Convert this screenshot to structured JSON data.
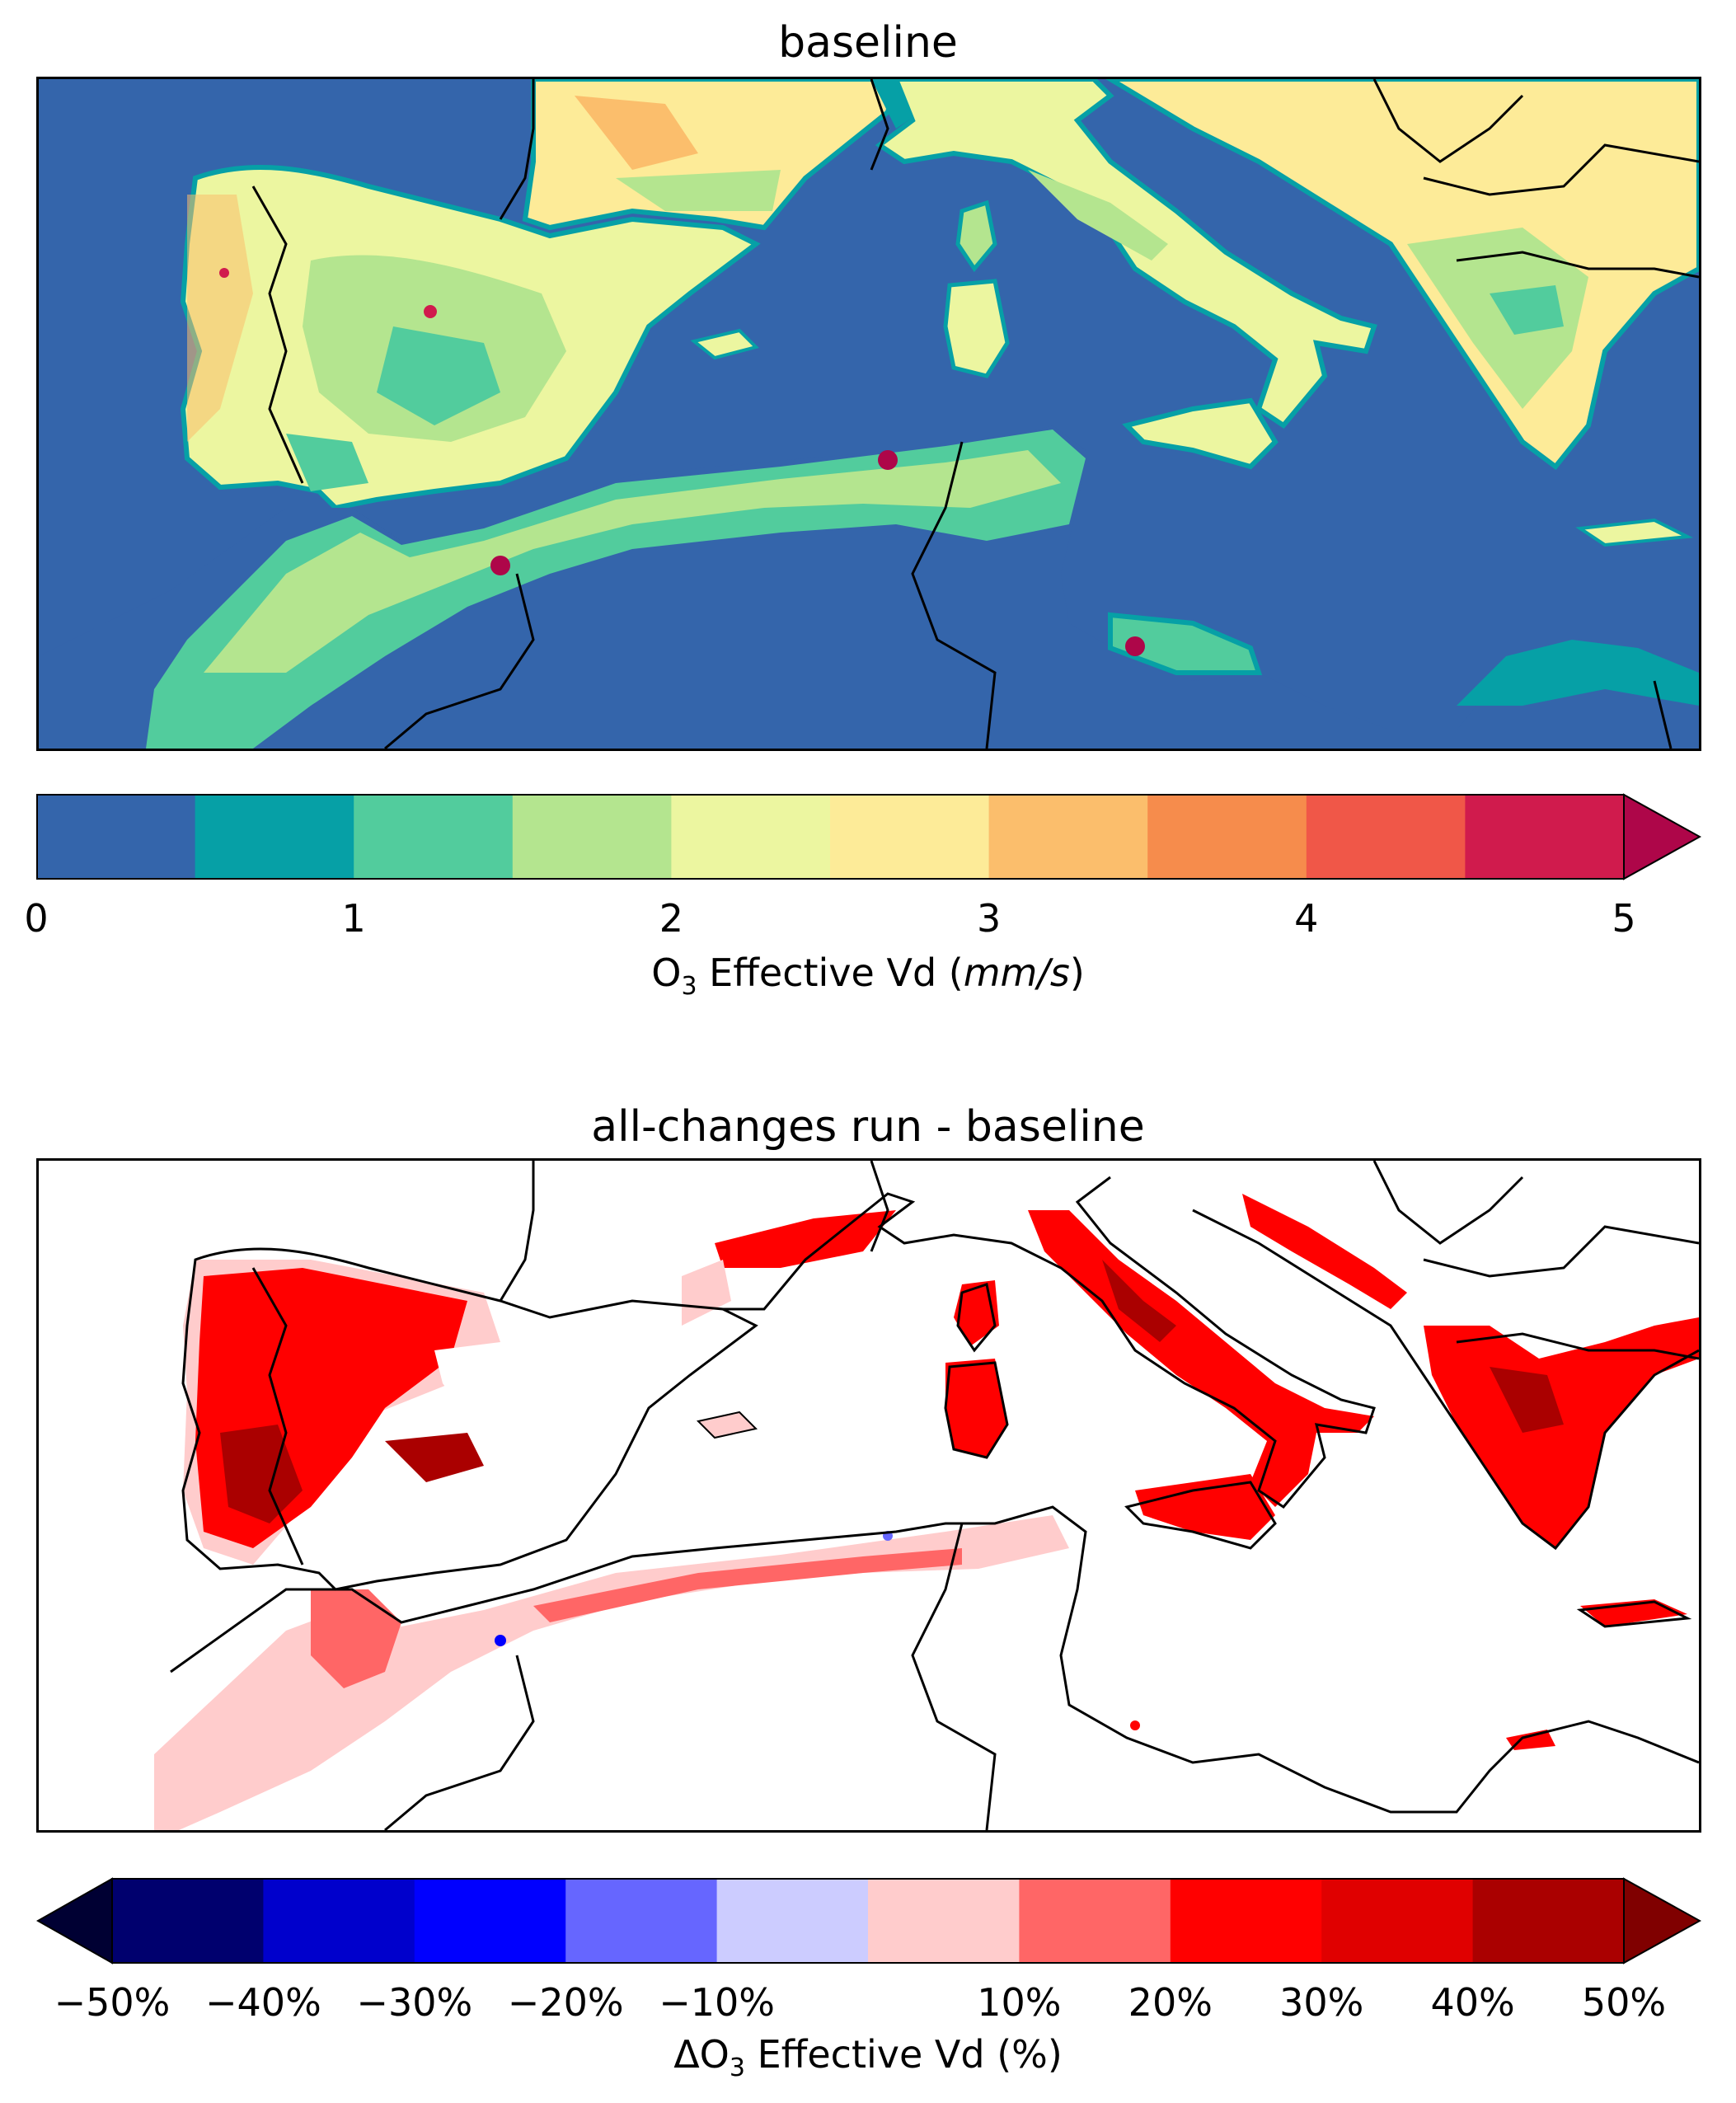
{
  "panel1": {
    "title": "baseline",
    "colorbar": {
      "ticks": [
        "0",
        "1",
        "2",
        "3",
        "4",
        "5"
      ],
      "label_prefix": "O",
      "label_sub": "3",
      "label_mid": " Effective Vd (",
      "label_unit": "mm/s",
      "label_suffix": ")",
      "bounds": [
        0,
        5
      ],
      "levels": [
        0,
        0.5,
        1,
        1.5,
        2,
        2.5,
        3,
        3.5,
        4,
        4.5,
        5
      ],
      "colors": [
        "#3465ab",
        "#06a0a6",
        "#52cc9d",
        "#b4e58f",
        "#ecf6a0",
        "#fdeb98",
        "#fbbe6c",
        "#f68c4c",
        "#f05748",
        "#d01b4d"
      ],
      "over_color": "#ae0649",
      "sea_color": "#3465ab"
    }
  },
  "panel2": {
    "title": "all-changes run - baseline",
    "colorbar": {
      "ticks": [
        "−50%",
        "−40%",
        "−30%",
        "−20%",
        "−10%",
        "10%",
        "20%",
        "30%",
        "40%",
        "50%"
      ],
      "tick_values": [
        -50,
        -40,
        -30,
        -20,
        -10,
        10,
        20,
        30,
        40,
        50
      ],
      "label_prefix": "ΔO",
      "label_sub": "3",
      "label_suffix": " Effective Vd (%)",
      "bounds": [
        -50,
        50
      ],
      "under_color": "#000033",
      "over_color": "#800000",
      "colors": [
        "#00006e",
        "#0000cc",
        "#0000ff",
        "#6666ff",
        "#ccccff",
        "#ffcccc",
        "#ff6666",
        "#ff0000",
        "#e00000",
        "#aa0000"
      ]
    }
  }
}
